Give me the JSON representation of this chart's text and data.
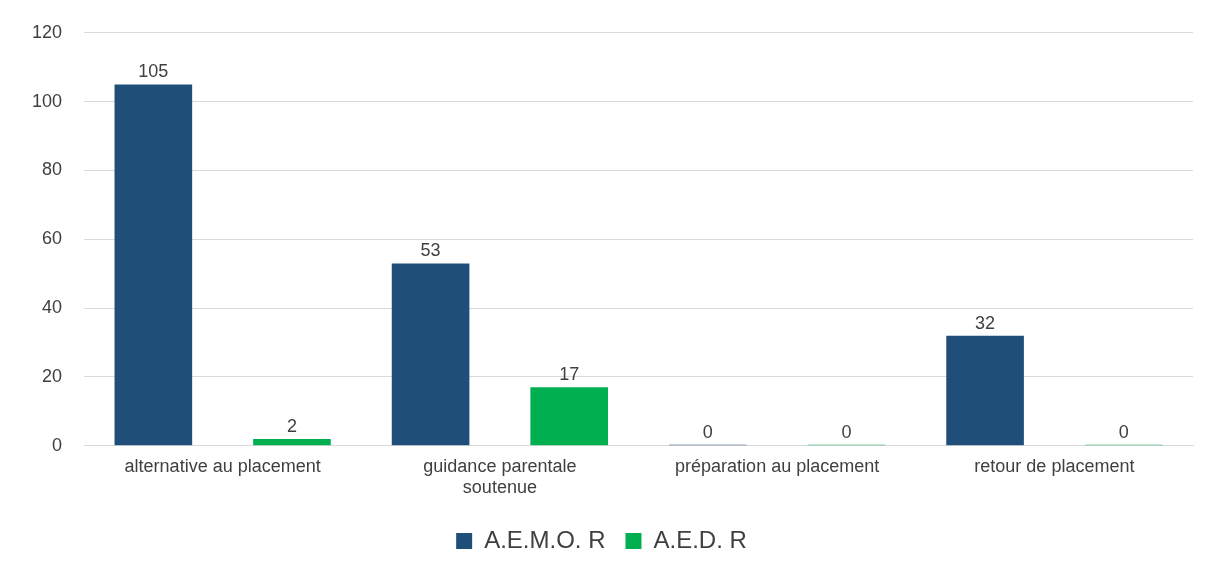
{
  "chart_data": {
    "type": "bar",
    "categories": [
      "alternative au placement",
      "guidance parentale soutenue",
      "préparation au placement",
      "retour de placement"
    ],
    "series": [
      {
        "name": "A.E.M.O. R",
        "color": "#1f4e79",
        "values": [
          105,
          53,
          0,
          32
        ]
      },
      {
        "name": "A.E.D. R",
        "color": "#00b050",
        "values": [
          2,
          17,
          0,
          0
        ]
      }
    ],
    "ylim": [
      0,
      120
    ],
    "yticks": [
      0,
      20,
      40,
      60,
      80,
      100,
      120
    ],
    "grid": "y",
    "legend": "bottom",
    "data_labels": true
  }
}
